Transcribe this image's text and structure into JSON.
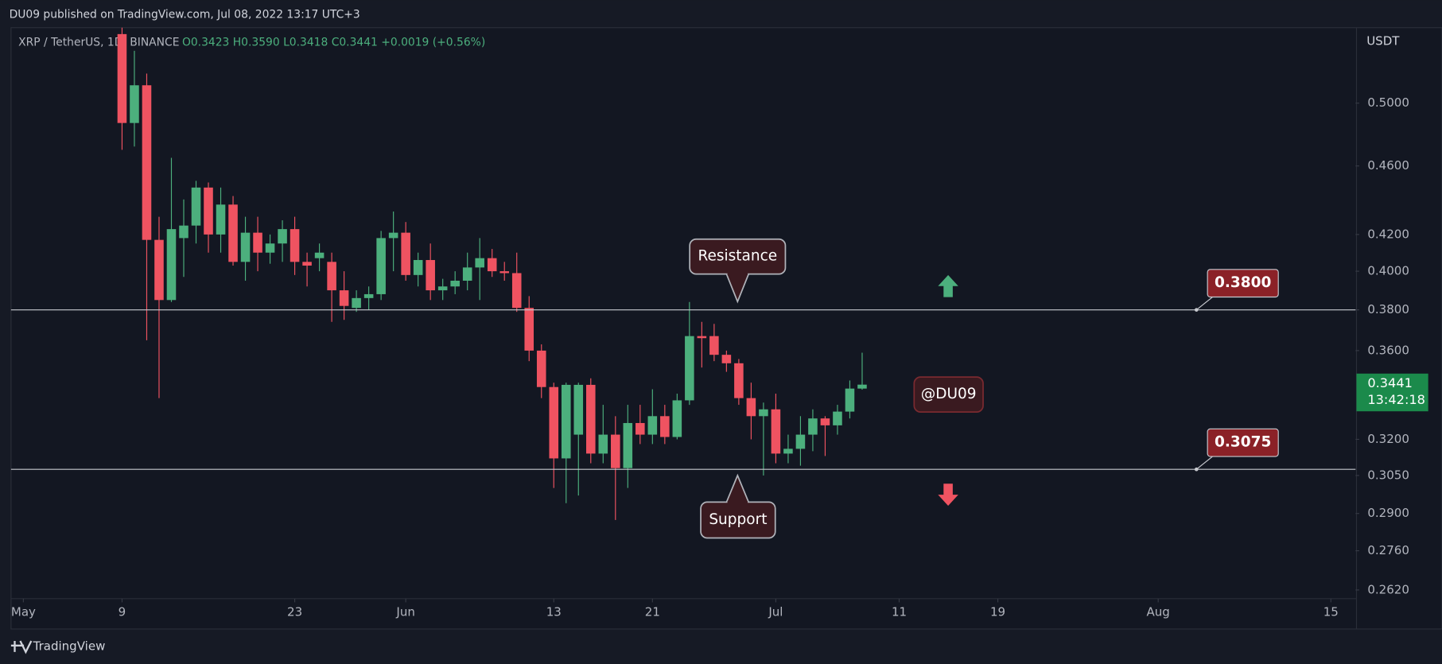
{
  "header": {
    "published": "DU09 published on TradingView.com, Jul 08, 2022 13:17 UTC+3"
  },
  "chart_data": {
    "type": "candlestick",
    "title": "XRP / TetherUS, 1D, BINANCE",
    "ohlc_legend": "O0.3423 H0.3590 L0.3418 C0.3441 +0.0019 (+0.56%)",
    "y_axis_label": "USDT",
    "x": [
      "05-09",
      "05-10",
      "05-11",
      "05-12",
      "05-13",
      "05-14",
      "05-15",
      "05-16",
      "05-17",
      "05-18",
      "05-19",
      "05-20",
      "05-21",
      "05-22",
      "05-23",
      "05-24",
      "05-25",
      "05-26",
      "05-27",
      "05-28",
      "05-29",
      "05-30",
      "05-31",
      "06-01",
      "06-02",
      "06-03",
      "06-04",
      "06-05",
      "06-06",
      "06-07",
      "06-08",
      "06-09",
      "06-10",
      "06-11",
      "06-12",
      "06-13",
      "06-14",
      "06-15",
      "06-16",
      "06-17",
      "06-18",
      "06-19",
      "06-20",
      "06-21",
      "06-22",
      "06-23",
      "06-24",
      "06-25",
      "06-26",
      "06-27",
      "06-28",
      "06-29",
      "06-30",
      "07-01",
      "07-02",
      "07-03",
      "07-04",
      "07-05",
      "07-06",
      "07-07",
      "07-08"
    ],
    "open": [
      0.548,
      0.487,
      0.512,
      0.417,
      0.385,
      0.418,
      0.425,
      0.447,
      0.42,
      0.437,
      0.405,
      0.421,
      0.41,
      0.415,
      0.423,
      0.405,
      0.407,
      0.405,
      0.39,
      0.381,
      0.386,
      0.388,
      0.418,
      0.421,
      0.398,
      0.406,
      0.39,
      0.392,
      0.395,
      0.402,
      0.407,
      0.4,
      0.399,
      0.381,
      0.36,
      0.343,
      0.312,
      0.322,
      0.344,
      0.314,
      0.322,
      0.308,
      0.327,
      0.322,
      0.33,
      0.321,
      0.337,
      0.367,
      0.367,
      0.358,
      0.354,
      0.338,
      0.33,
      0.333,
      0.314,
      0.316,
      0.322,
      0.329,
      0.326,
      0.332,
      0.3423
    ],
    "high": [
      0.553,
      0.536,
      0.52,
      0.43,
      0.465,
      0.44,
      0.451,
      0.45,
      0.447,
      0.442,
      0.43,
      0.43,
      0.42,
      0.428,
      0.43,
      0.41,
      0.415,
      0.41,
      0.4,
      0.39,
      0.392,
      0.422,
      0.433,
      0.427,
      0.41,
      0.415,
      0.396,
      0.4,
      0.41,
      0.418,
      0.412,
      0.405,
      0.41,
      0.387,
      0.363,
      0.345,
      0.345,
      0.345,
      0.347,
      0.335,
      0.33,
      0.335,
      0.335,
      0.342,
      0.335,
      0.34,
      0.384,
      0.374,
      0.373,
      0.36,
      0.356,
      0.345,
      0.336,
      0.34,
      0.322,
      0.33,
      0.333,
      0.33,
      0.335,
      0.346,
      0.359
    ],
    "low": [
      0.47,
      0.472,
      0.365,
      0.338,
      0.384,
      0.397,
      0.415,
      0.41,
      0.41,
      0.403,
      0.395,
      0.4,
      0.404,
      0.405,
      0.398,
      0.392,
      0.4,
      0.374,
      0.375,
      0.379,
      0.38,
      0.385,
      0.4,
      0.395,
      0.392,
      0.385,
      0.385,
      0.388,
      0.39,
      0.385,
      0.397,
      0.395,
      0.379,
      0.355,
      0.338,
      0.3,
      0.294,
      0.297,
      0.31,
      0.31,
      0.2875,
      0.3,
      0.318,
      0.318,
      0.318,
      0.32,
      0.335,
      0.352,
      0.355,
      0.35,
      0.335,
      0.32,
      0.305,
      0.31,
      0.31,
      0.309,
      0.315,
      0.313,
      0.322,
      0.329,
      0.3418
    ],
    "close": [
      0.487,
      0.512,
      0.417,
      0.385,
      0.423,
      0.425,
      0.447,
      0.42,
      0.437,
      0.405,
      0.421,
      0.41,
      0.415,
      0.423,
      0.405,
      0.403,
      0.41,
      0.39,
      0.382,
      0.386,
      0.388,
      0.418,
      0.421,
      0.398,
      0.406,
      0.39,
      0.392,
      0.395,
      0.402,
      0.407,
      0.4,
      0.399,
      0.381,
      0.36,
      0.343,
      0.312,
      0.344,
      0.344,
      0.314,
      0.322,
      0.308,
      0.327,
      0.322,
      0.33,
      0.321,
      0.337,
      0.367,
      0.366,
      0.358,
      0.354,
      0.338,
      0.33,
      0.333,
      0.314,
      0.316,
      0.322,
      0.329,
      0.326,
      0.332,
      0.3423,
      0.3441
    ],
    "up_color": "#4caf7d",
    "down_color": "#ef5361",
    "log_scale": true,
    "ylim": [
      0.259,
      0.5527
    ],
    "yticks": [
      {
        "value": 0.5,
        "label": "0.5000"
      },
      {
        "value": 0.46,
        "label": "0.4600"
      },
      {
        "value": 0.42,
        "label": "0.4200"
      },
      {
        "value": 0.4,
        "label": "0.4000"
      },
      {
        "value": 0.38,
        "label": "0.3800"
      },
      {
        "value": 0.36,
        "label": "0.3600"
      },
      {
        "value": 0.32,
        "label": "0.3200"
      },
      {
        "value": 0.305,
        "label": "0.3050"
      },
      {
        "value": 0.29,
        "label": "0.2900"
      },
      {
        "value": 0.276,
        "label": "0.2760"
      },
      {
        "value": 0.262,
        "label": "0.2620"
      }
    ],
    "xlim": [
      "04-30",
      "08-17"
    ],
    "xticks": [
      {
        "value": "05-01",
        "label": "May"
      },
      {
        "value": "05-09",
        "label": "9"
      },
      {
        "value": "05-23",
        "label": "23"
      },
      {
        "value": "06-01",
        "label": "Jun"
      },
      {
        "value": "06-13",
        "label": "13"
      },
      {
        "value": "06-21",
        "label": "21"
      },
      {
        "value": "07-01",
        "label": "Jul"
      },
      {
        "value": "07-11",
        "label": "11"
      },
      {
        "value": "07-19",
        "label": "19"
      },
      {
        "value": "08-01",
        "label": "Aug"
      },
      {
        "value": "08-15",
        "label": "15"
      }
    ],
    "levels": [
      {
        "value": 0.38,
        "label": "0.3800"
      },
      {
        "value": 0.3075,
        "label": "0.3075"
      }
    ],
    "last_price": {
      "value": 0.3441,
      "label": "0.3441",
      "countdown": "13:42:18"
    },
    "annotations": [
      "Resistance",
      "Support",
      "@DU09"
    ]
  },
  "footer": {
    "brand": "TradingView"
  }
}
